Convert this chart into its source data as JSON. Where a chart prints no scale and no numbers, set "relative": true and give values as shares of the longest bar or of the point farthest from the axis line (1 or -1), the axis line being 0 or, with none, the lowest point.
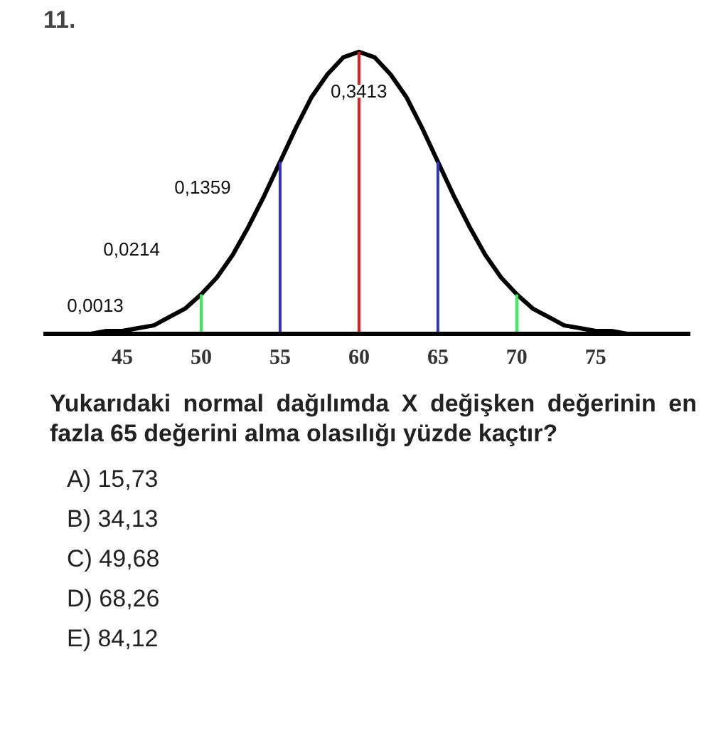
{
  "chart_data": {
    "type": "line",
    "title": "11.",
    "relative": true,
    "x": [
      41,
      42,
      43,
      44,
      45,
      46,
      47,
      48,
      49,
      50,
      51,
      52,
      53,
      54,
      55,
      56,
      57,
      58,
      59,
      60,
      61,
      62,
      63,
      64,
      65,
      66,
      67,
      68,
      69,
      70,
      71,
      72,
      73,
      74,
      75,
      76,
      77,
      78,
      79
    ],
    "series": [
      {
        "color": "#000000",
        "values": [
          0.0,
          0.0,
          0.0,
          0.01,
          0.01,
          0.02,
          0.03,
          0.06,
          0.09,
          0.14,
          0.2,
          0.28,
          0.38,
          0.49,
          0.61,
          0.73,
          0.84,
          0.92,
          0.98,
          1.0,
          0.98,
          0.92,
          0.84,
          0.73,
          0.61,
          0.49,
          0.38,
          0.28,
          0.2,
          0.14,
          0.09,
          0.06,
          0.03,
          0.02,
          0.01,
          0.01,
          0.0,
          0.0,
          0.0
        ]
      }
    ],
    "xlim": [
      40,
      81
    ],
    "xticks": [
      45,
      50,
      55,
      60,
      65,
      70,
      75
    ],
    "tick_labels": "x",
    "grid": false,
    "marker": "none",
    "line_style": "solid",
    "ref_lines": [
      {
        "axis": "x",
        "value": 50,
        "color": "#33ee55"
      },
      {
        "axis": "x",
        "value": 55,
        "color": "#3333bb"
      },
      {
        "axis": "x",
        "value": 60,
        "color": "#e02020"
      },
      {
        "axis": "x",
        "value": 65,
        "color": "#3333bb"
      },
      {
        "axis": "x",
        "value": 70,
        "color": "#33ee55"
      }
    ],
    "annotations": [
      "0,3413",
      "0,1359",
      "0,0214",
      "0,0013",
      "Yukarıdaki normal dağılımda X değişken değerinin en fazla 65 değerini alma olasılığı yüzde kaçtır?",
      "A)  15,73",
      "B)  34,13",
      "C)  49,68",
      "D)  68,26",
      "E)  84,12"
    ]
  }
}
